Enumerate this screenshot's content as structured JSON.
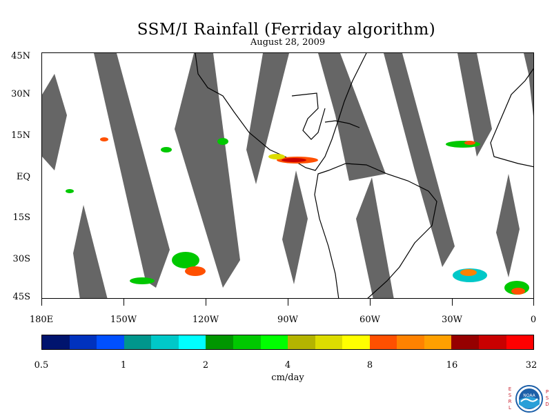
{
  "title": "SSM/I Rainfall (Ferriday algorithm)",
  "date": "August 28, 2009",
  "lat_labels": [
    "45N",
    "30N",
    "15N",
    "EQ",
    "15S",
    "30S",
    "45S"
  ],
  "lon_labels": [
    "180E",
    "150W",
    "120W",
    "90W",
    "60W",
    "30W",
    "0"
  ],
  "colorbar": {
    "colors": [
      "#00146e",
      "#0032be",
      "#0050ff",
      "#00968c",
      "#00c8c8",
      "#00ffff",
      "#009600",
      "#00c800",
      "#00ff00",
      "#b4b400",
      "#dcdc00",
      "#ffff00",
      "#ff5000",
      "#ff8200",
      "#ffa000",
      "#960000",
      "#c80000",
      "#ff0000"
    ],
    "labels": [
      "0.5",
      "1",
      "2",
      "4",
      "8",
      "16",
      "32"
    ]
  },
  "units": "cm/day",
  "logo": {
    "left_letters": "ESRL",
    "right_letters": "PSD",
    "badge": "NOAA"
  },
  "colors": {
    "swath_gap": "#666666",
    "land_outline": "#000000",
    "background": "#ffffff"
  }
}
